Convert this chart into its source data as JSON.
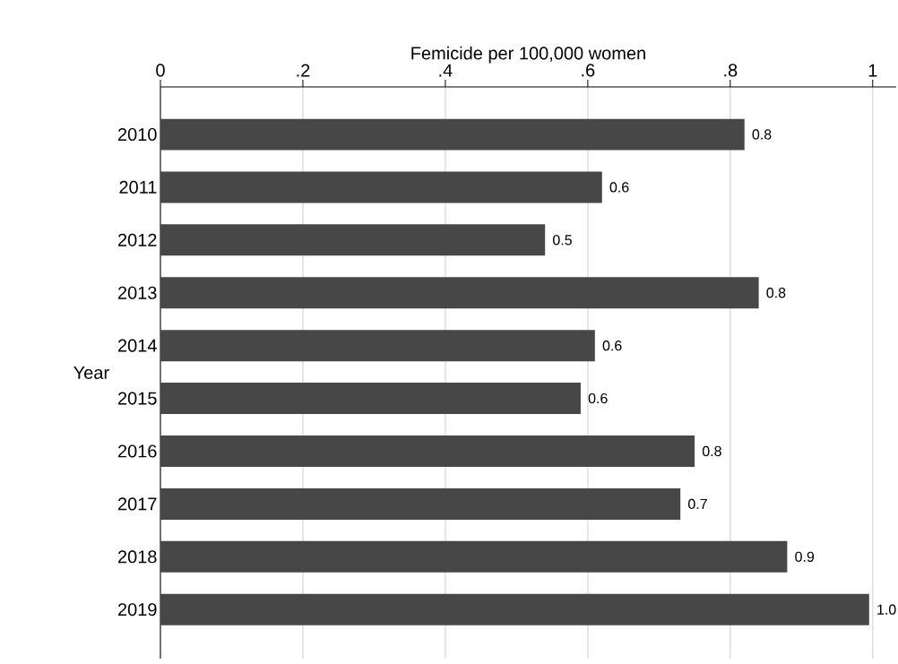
{
  "chart_data": {
    "type": "bar",
    "orientation": "horizontal",
    "xlabel": "Femicide per 100,000 women",
    "ylabel": "Year",
    "categories": [
      "2010",
      "2011",
      "2012",
      "2013",
      "2014",
      "2015",
      "2016",
      "2017",
      "2018",
      "2019"
    ],
    "values": [
      0.82,
      0.62,
      0.54,
      0.84,
      0.61,
      0.59,
      0.75,
      0.73,
      0.88,
      0.995
    ],
    "value_labels": [
      "0.8",
      "0.6",
      "0.5",
      "0.8",
      "0.6",
      "0.6",
      "0.8",
      "0.7",
      "0.9",
      "1.0"
    ],
    "color": "#474747",
    "xlim": [
      0,
      1.033
    ],
    "xticks": [
      0,
      {
        "value": 0.2,
        "label": ".2"
      },
      {
        "value": 0.4,
        "label": ".4"
      },
      {
        "value": 0.6,
        "label": ".6"
      },
      {
        "value": 0.8,
        "label": ".8"
      },
      1
    ],
    "grid": "x"
  }
}
